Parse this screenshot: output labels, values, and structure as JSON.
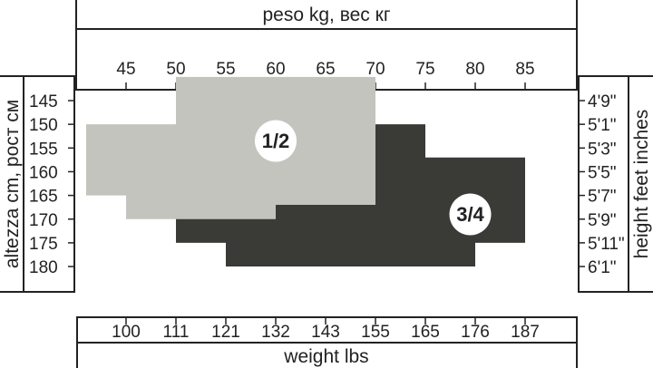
{
  "chart_data": {
    "type": "area",
    "top_axis": {
      "label": "peso kg, вес кг",
      "ticks": [
        "45",
        "50",
        "55",
        "60",
        "65",
        "70",
        "75",
        "80",
        "85"
      ],
      "values": [
        45,
        50,
        55,
        60,
        65,
        70,
        75,
        80,
        85
      ]
    },
    "bottom_axis": {
      "label": "weight lbs",
      "ticks": [
        "100",
        "111",
        "121",
        "132",
        "143",
        "155",
        "165",
        "176",
        "187"
      ]
    },
    "left_axis": {
      "label": "altezza cm, рост см",
      "ticks": [
        "145",
        "150",
        "155",
        "160",
        "165",
        "170",
        "175",
        "180"
      ],
      "values": [
        145,
        150,
        155,
        160,
        165,
        170,
        175,
        180
      ]
    },
    "right_axis": {
      "label": "height feet inches",
      "ticks": [
        "4'9\"",
        "5'1\"",
        "5'3\"",
        "5'5\"",
        "5'7\"",
        "5'9\"",
        "5'11\"",
        "6'1\""
      ]
    },
    "xlim_kg": [
      40,
      90
    ],
    "ylim_cm": [
      140,
      180
    ],
    "grid": false,
    "regions": [
      {
        "name": "3/4",
        "color": "#3a3a36",
        "polygon_kg_cm": [
          [
            70,
            150
          ],
          [
            75,
            150
          ],
          [
            75,
            157
          ],
          [
            85,
            157
          ],
          [
            85,
            175
          ],
          [
            80,
            175
          ],
          [
            80,
            180
          ],
          [
            55,
            180
          ],
          [
            55,
            175
          ],
          [
            50,
            175
          ],
          [
            50,
            167
          ],
          [
            70,
            167
          ]
        ]
      },
      {
        "name": "1/2",
        "color": "#c4c4bf",
        "polygon_kg_cm": [
          [
            50,
            140
          ],
          [
            70,
            140
          ],
          [
            70,
            167
          ],
          [
            60,
            167
          ],
          [
            60,
            170
          ],
          [
            45,
            170
          ],
          [
            45,
            165
          ],
          [
            41,
            165
          ],
          [
            41,
            150
          ],
          [
            50,
            150
          ]
        ]
      }
    ]
  }
}
